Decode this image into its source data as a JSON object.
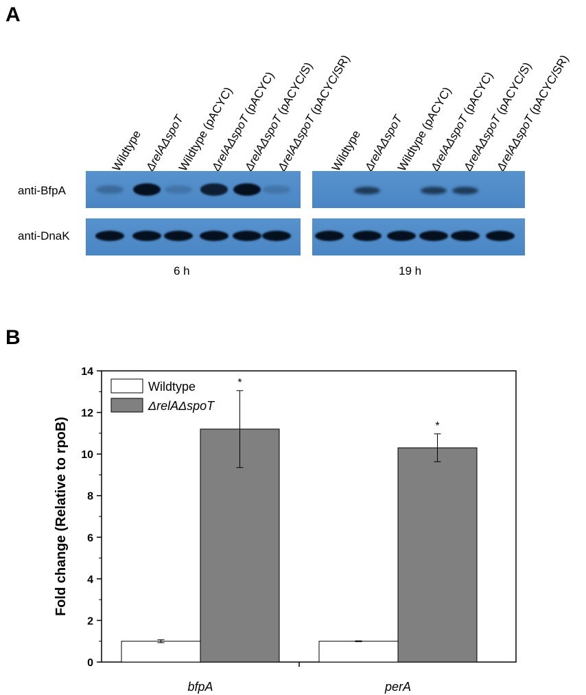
{
  "panel_a": {
    "label": "A",
    "lanes": [
      {
        "name": "Wildtype",
        "italic": ""
      },
      {
        "name": "",
        "italic": "ΔrelAΔspoT"
      },
      {
        "name": "Wildtype (pACYC)",
        "italic": ""
      },
      {
        "name": " (pACYC)",
        "italic": "ΔrelAΔspoT"
      },
      {
        "name": " (pACYC/S)",
        "italic": "ΔrelAΔspoT"
      },
      {
        "name": " (pACYC/SR)",
        "italic": "ΔrelAΔspoT"
      }
    ],
    "rows": {
      "bfpa": "anti-BfpA",
      "dnak": "anti-DnaK"
    },
    "times": [
      "6 h",
      "19 h"
    ],
    "bfpa_intensity": {
      "6h": [
        0.15,
        1.0,
        0.05,
        0.85,
        1.0,
        0.05
      ],
      "19h": [
        0,
        0.6,
        0,
        0.6,
        0.6,
        0
      ]
    },
    "dnak_intensity": {
      "6h": [
        1,
        1,
        1,
        1,
        1,
        1
      ],
      "19h": [
        1,
        1,
        1,
        1,
        1,
        1
      ]
    },
    "blot_color": "#4d8bc9",
    "band_color": "#05101f"
  },
  "panel_b": {
    "label": "B",
    "chart_data": {
      "type": "bar",
      "categories": [
        "bfpA",
        "perA"
      ],
      "series": [
        {
          "name": "Wildtype",
          "values": [
            1.0,
            1.0
          ],
          "errors": [
            0.07,
            0.02
          ],
          "color": "#ffffff"
        },
        {
          "name": "ΔrelAΔspoT",
          "values": [
            11.2,
            10.3
          ],
          "errors": [
            1.85,
            0.67
          ],
          "color": "#808080"
        }
      ],
      "significance": [
        "*",
        "*"
      ],
      "ylabel": "Fold change (Relative to rpoB)",
      "ylim": [
        0,
        14
      ],
      "yticks": [
        0,
        2,
        4,
        6,
        8,
        10,
        12,
        14
      ],
      "legend_position": "top-left"
    }
  }
}
